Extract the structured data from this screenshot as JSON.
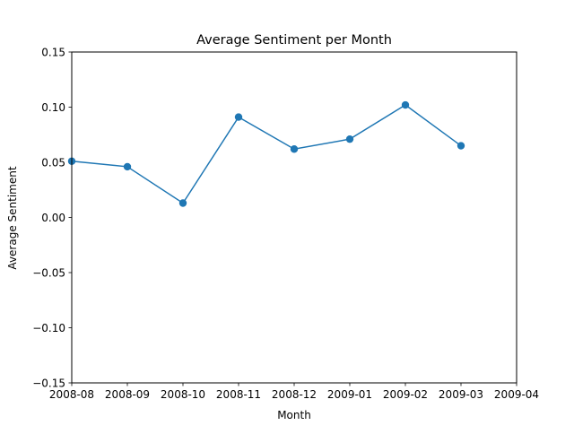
{
  "chart_data": {
    "type": "line",
    "title": "Average Sentiment per Month",
    "xlabel": "Month",
    "ylabel": "Average Sentiment",
    "x_ticks": [
      "2008-08",
      "2008-09",
      "2008-10",
      "2008-11",
      "2008-12",
      "2009-01",
      "2009-02",
      "2009-03",
      "2009-04"
    ],
    "y_ticks": [
      "−0.15",
      "−0.10",
      "−0.05",
      "0.00",
      "0.05",
      "0.10",
      "0.15"
    ],
    "ylim": [
      -0.15,
      0.15
    ],
    "xlim": [
      "2008-08",
      "2009-04"
    ],
    "grid": false,
    "series": [
      {
        "color": "#1f77b4",
        "marker": "circle",
        "points": [
          {
            "x": "2008-08",
            "y": 0.051
          },
          {
            "x": "2008-09",
            "y": 0.046
          },
          {
            "x": "2008-10",
            "y": 0.013
          },
          {
            "x": "2008-11",
            "y": 0.091
          },
          {
            "x": "2008-12",
            "y": 0.062
          },
          {
            "x": "2009-01",
            "y": 0.071
          },
          {
            "x": "2009-02",
            "y": 0.102
          },
          {
            "x": "2009-03",
            "y": 0.065
          }
        ]
      }
    ]
  }
}
